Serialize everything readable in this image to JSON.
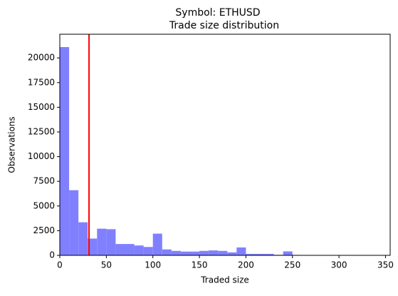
{
  "chart_data": {
    "type": "histogram",
    "suptitle": "Symbol: ETHUSD",
    "title": "Trade size distribution",
    "xlabel": "Traded size",
    "ylabel": "Observations",
    "bins": [
      0,
      10,
      20,
      30,
      40,
      50,
      60,
      70,
      80,
      90,
      100,
      110,
      120,
      130,
      140,
      150,
      160,
      170,
      180,
      190,
      200,
      210,
      220,
      230,
      240,
      250,
      260,
      270,
      280,
      290,
      300,
      310,
      320,
      330,
      340,
      350
    ],
    "values": [
      21100,
      6600,
      3350,
      1700,
      2700,
      2650,
      1150,
      1150,
      1000,
      850,
      2200,
      600,
      450,
      380,
      380,
      450,
      500,
      450,
      300,
      800,
      150,
      150,
      150,
      50,
      400,
      40,
      30,
      30,
      30,
      20,
      20,
      20,
      10,
      10,
      10
    ],
    "color": "#8080ff",
    "reference_line": {
      "value": 31.4,
      "color": "#ff0000"
    },
    "xlim": [
      0,
      355
    ],
    "ylim": [
      0,
      22400
    ],
    "xticks": [
      0,
      50,
      100,
      150,
      200,
      250,
      300,
      350
    ],
    "yticks": [
      0,
      2500,
      5000,
      7500,
      10000,
      12500,
      15000,
      17500,
      20000
    ]
  }
}
